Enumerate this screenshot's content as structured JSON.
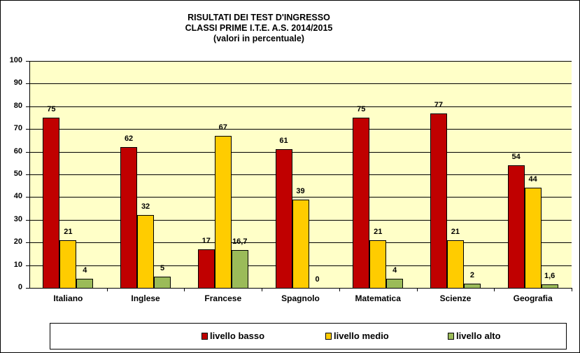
{
  "chart_data": {
    "type": "bar",
    "title": "RISULTATI DEI TEST D'INGRESSO",
    "subtitle": "CLASSI PRIME  I.T.E. A.S. 2014/2015",
    "subtitle2": "(valori  in percentuale)",
    "xlabel": "",
    "ylabel": "",
    "ylim": [
      0,
      100
    ],
    "yticks": [
      "0",
      "10",
      "20",
      "30",
      "40",
      "50",
      "60",
      "70",
      "80",
      "90",
      "100"
    ],
    "grid": true,
    "legend_position": "bottom",
    "categories": [
      "Italiano",
      "Inglese",
      "Francese",
      "Spagnolo",
      "Matematica",
      "Scienze",
      "Geografia"
    ],
    "series": [
      {
        "name": "livello basso",
        "color": "#c00000",
        "values": [
          75,
          62,
          17,
          61,
          75,
          77,
          54
        ],
        "labels": [
          "75",
          "62",
          "17",
          "61",
          "75",
          "77",
          "54"
        ]
      },
      {
        "name": "livello medio",
        "color": "#ffcc00",
        "values": [
          21,
          32,
          67,
          39,
          21,
          21,
          44
        ],
        "labels": [
          "21",
          "32",
          "67",
          "39",
          "21",
          "21",
          "44"
        ]
      },
      {
        "name": "livello alto",
        "color": "#9bbb59",
        "values": [
          4,
          5,
          16.7,
          0,
          4,
          2,
          1.6
        ],
        "labels": [
          "4",
          "5",
          "16,7",
          "0",
          "4",
          "2",
          "1,6"
        ]
      }
    ]
  }
}
